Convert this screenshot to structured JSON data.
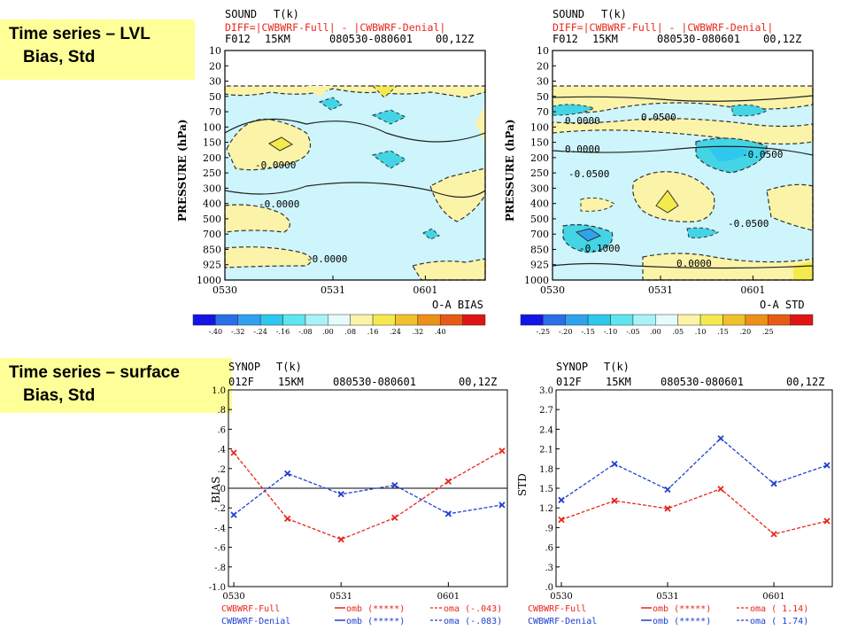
{
  "labels": {
    "lvl": {
      "line1": "Time series – LVL",
      "line2": "Bias, Std"
    },
    "surface": {
      "line1": "Time series – surface",
      "line2": "Bias, Std"
    }
  },
  "colors": {
    "highlight": "#ffff99",
    "red": "#e8261a",
    "blue": "#1f3fd0",
    "light_blue": "#cdf5fb",
    "yellow": "#fbf3a8",
    "cyan": "#43d4e6"
  },
  "chart_data": [
    {
      "type": "heatmap",
      "header": {
        "line1_a": "SOUND",
        "line1_b": "T(k)",
        "line2": "DIFF=|CWBWRF-Full| - |CWBWRF-Denial|",
        "line3_a": "F012",
        "line3_b": "15KM",
        "line3_c": "080530-080601",
        "line3_d": "00,12Z"
      },
      "ylabel": "PRESSURE (hPa)",
      "y_ticks": [
        "10",
        "20",
        "30",
        "50",
        "70",
        "100",
        "150",
        "200",
        "250",
        "300",
        "400",
        "500",
        "700",
        "850",
        "925",
        "1000"
      ],
      "x_ticks": [
        "0530",
        "0531",
        "0601"
      ],
      "footer": "O-A BIAS",
      "contour_labels": [
        "-0.0000",
        "-0.0000",
        "-0.0000"
      ],
      "colorbar": {
        "ticks": [
          "-.40",
          "-.32",
          "-.24",
          "-.16",
          "-.08",
          ".00",
          ".08",
          ".16",
          ".24",
          ".32",
          ".40"
        ],
        "colors": [
          "#1414e6",
          "#2a6ee8",
          "#2ea2ee",
          "#2ec8ee",
          "#5ee6f0",
          "#a9f2f8",
          "#e6fbfc",
          "#fbf3a8",
          "#f5ea4d",
          "#f0c12a",
          "#ee8f16",
          "#e85a14",
          "#e01414"
        ]
      }
    },
    {
      "type": "heatmap",
      "header": {
        "line1_a": "SOUND",
        "line1_b": "T(k)",
        "line2": "DIFF=|CWBWRF-Full| - |CWBWRF-Denial|",
        "line3_a": "F012",
        "line3_b": "15KM",
        "line3_c": "080530-080601",
        "line3_d": "00,12Z"
      },
      "ylabel": "PRESSURE (hPa)",
      "y_ticks": [
        "10",
        "20",
        "30",
        "50",
        "70",
        "100",
        "150",
        "200",
        "250",
        "300",
        "400",
        "500",
        "700",
        "850",
        "925",
        "1000"
      ],
      "x_ticks": [
        "0530",
        "0531",
        "0601"
      ],
      "footer": "O-A STD",
      "contour_labels": [
        "0.0000",
        "0.0500",
        "0.0000",
        "-0.0500",
        "-0.0500",
        "-0.0500",
        "-0.1000",
        "0.0000"
      ],
      "colorbar": {
        "ticks": [
          "-.25",
          "-.20",
          "-.15",
          "-.10",
          "-.05",
          ".00",
          ".05",
          ".10",
          ".15",
          ".20",
          ".25"
        ],
        "colors": [
          "#1414e6",
          "#2a6ee8",
          "#2ea2ee",
          "#2ec8ee",
          "#5ee6f0",
          "#a9f2f8",
          "#e6fbfc",
          "#fbf3a8",
          "#f5ea4d",
          "#f0c12a",
          "#ee8f16",
          "#e85a14",
          "#e01414"
        ]
      }
    },
    {
      "type": "line",
      "header": {
        "line1_a": "SYNOP",
        "line1_b": "T(k)",
        "line2_a": "012F",
        "line2_b": "15KM",
        "line2_c": "080530-080601",
        "line2_d": "00,12Z"
      },
      "ylabel": "BIAS",
      "ylim": [
        -1.0,
        1.0
      ],
      "y_ticks": [
        "1.0",
        ".8",
        ".6",
        ".4",
        ".2",
        ".0",
        "-.2",
        "-.4",
        "-.6",
        "-.8",
        "-1.0"
      ],
      "x": [
        0,
        1,
        2,
        3,
        4,
        5
      ],
      "x_ticks": [
        "0530",
        "0531",
        "0601"
      ],
      "series": [
        {
          "name": "CWBWRF-Full",
          "color": "#e8261a",
          "values": [
            0.36,
            -0.31,
            -0.52,
            -0.3,
            0.07,
            0.38
          ]
        },
        {
          "name": "CWBWRF-Denial",
          "color": "#1f3fd0",
          "values": [
            -0.27,
            0.15,
            -0.06,
            0.03,
            -0.26,
            -0.17
          ]
        }
      ],
      "legend": [
        {
          "name": "CWBWRF-Full",
          "omb": "omb (*****)",
          "oma": "oma (-.043)"
        },
        {
          "name": "CWBWRF-Denial",
          "omb": "omb (*****)",
          "oma": "oma (-.083)"
        }
      ]
    },
    {
      "type": "line",
      "header": {
        "line1_a": "SYNOP",
        "line1_b": "T(k)",
        "line2_a": "012F",
        "line2_b": "15KM",
        "line2_c": "080530-080601",
        "line2_d": "00,12Z"
      },
      "ylabel": "STD",
      "ylim": [
        0.0,
        3.0
      ],
      "y_ticks": [
        "3.0",
        "2.7",
        "2.4",
        "2.1",
        "1.8",
        "1.5",
        "1.2",
        ".9",
        ".6",
        ".3",
        ".0"
      ],
      "x": [
        0,
        1,
        2,
        3,
        4,
        5
      ],
      "x_ticks": [
        "0530",
        "0531",
        "0601"
      ],
      "series": [
        {
          "name": "CWBWRF-Full",
          "color": "#e8261a",
          "values": [
            1.02,
            1.31,
            1.19,
            1.49,
            0.8,
            1.0
          ]
        },
        {
          "name": "CWBWRF-Denial",
          "color": "#1f3fd0",
          "values": [
            1.32,
            1.87,
            1.48,
            2.26,
            1.57,
            1.85
          ]
        }
      ],
      "legend": [
        {
          "name": "CWBWRF-Full",
          "omb": "omb (*****)",
          "oma": "oma ( 1.14)"
        },
        {
          "name": "CWBWRF-Denial",
          "omb": "omb (*****)",
          "oma": "oma ( 1.74)"
        }
      ]
    }
  ]
}
